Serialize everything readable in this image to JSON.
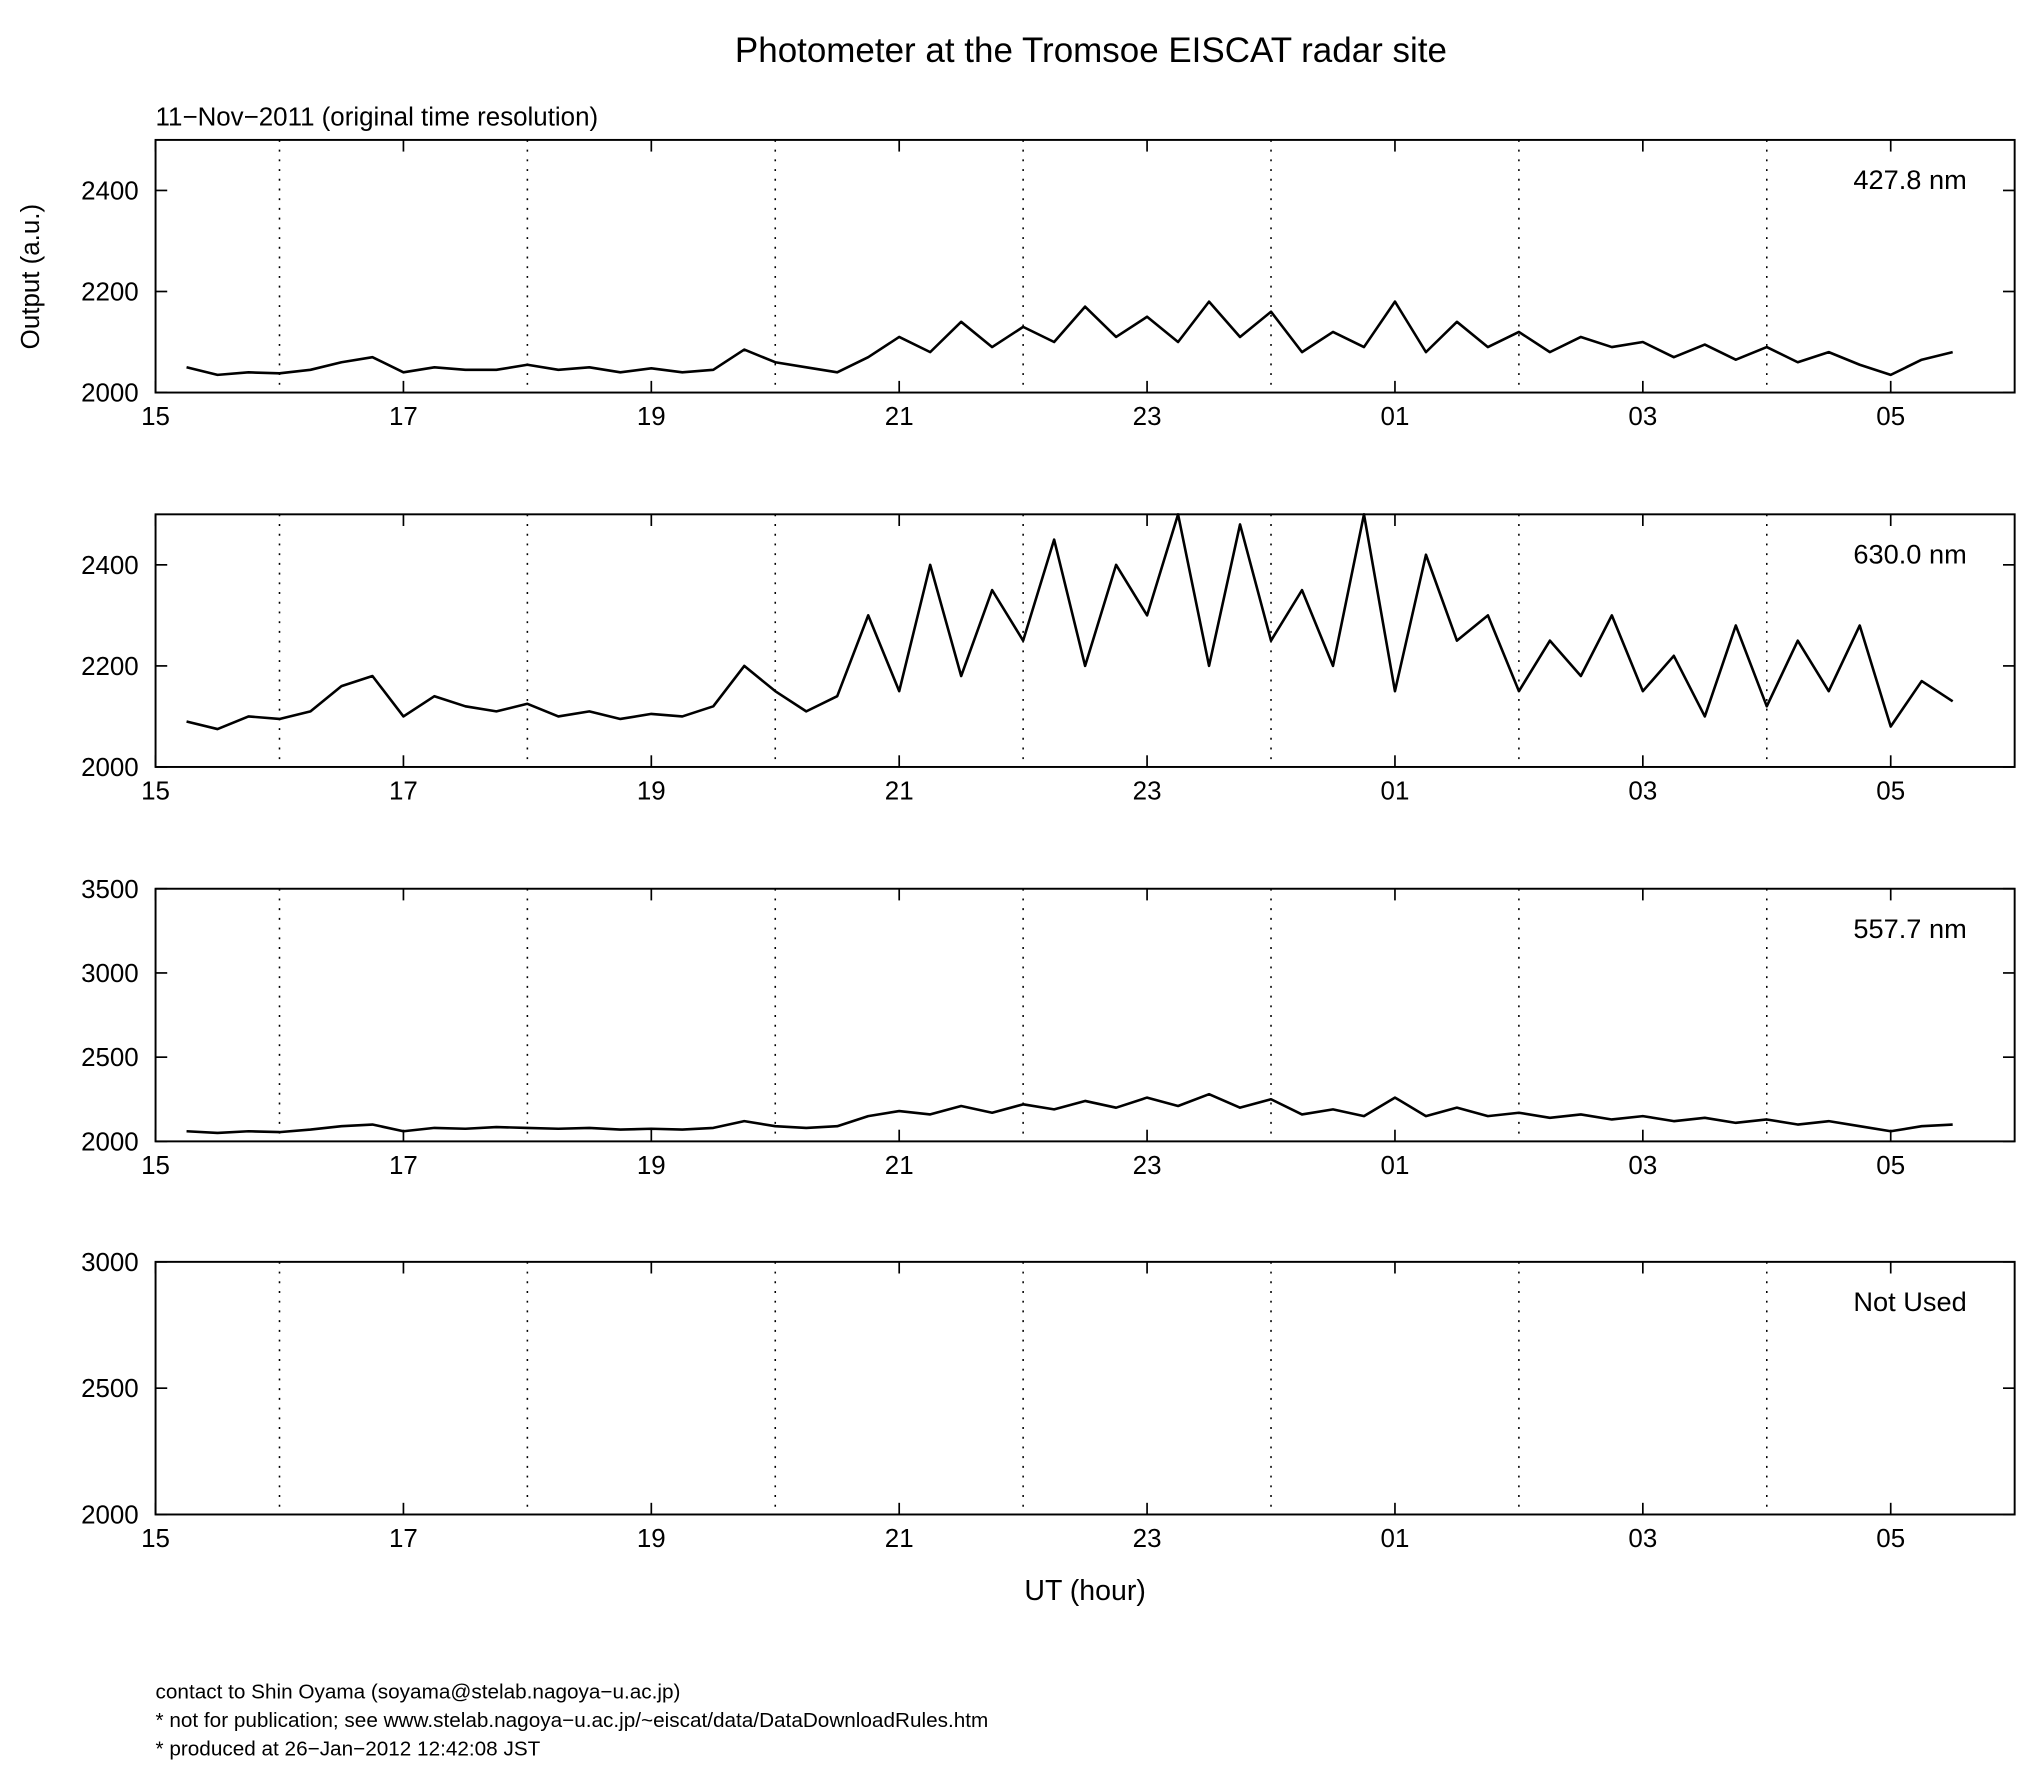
{
  "title": "Photometer at the Tromsoe EISCAT radar site",
  "subtitle": "11−Nov−2011 (original time resolution)",
  "footer": [
    "contact to Shin Oyama (soyama@stelab.nagoya−u.ac.jp)",
    "* not for publication; see www.stelab.nagoya−u.ac.jp/~eiscat/data/DataDownloadRules.htm",
    "* produced at 26−Jan−2012 12:42:08 JST"
  ],
  "chart_data": [
    {
      "type": "line",
      "label": "427.8 nm",
      "ylabel": "Output (a.u.)",
      "x": [
        15.25,
        15.5,
        15.75,
        16,
        16.25,
        16.5,
        16.75,
        17,
        17.25,
        17.5,
        17.75,
        18,
        18.25,
        18.5,
        18.75,
        19,
        19.25,
        19.5,
        19.75,
        20,
        20.25,
        20.5,
        20.75,
        21,
        21.25,
        21.5,
        21.75,
        22,
        22.25,
        22.5,
        22.75,
        23,
        23.25,
        23.5,
        23.75,
        24,
        24.25,
        24.5,
        24.75,
        25,
        25.25,
        25.5,
        25.75,
        26,
        26.25,
        26.5,
        26.75,
        27,
        27.25,
        27.5,
        27.75,
        28,
        28.25,
        28.5,
        28.75,
        29,
        29.25,
        29.5
      ],
      "series": [
        {
          "color": "#000000",
          "values": [
            2050,
            2035,
            2040,
            2038,
            2045,
            2060,
            2070,
            2040,
            2050,
            2045,
            2045,
            2055,
            2045,
            2050,
            2040,
            2048,
            2040,
            2045,
            2085,
            2060,
            2050,
            2040,
            2070,
            2110,
            2080,
            2140,
            2090,
            2130,
            2100,
            2170,
            2110,
            2150,
            2100,
            2180,
            2110,
            2160,
            2080,
            2120,
            2090,
            2180,
            2080,
            2140,
            2090,
            2120,
            2080,
            2110,
            2090,
            2100,
            2070,
            2095,
            2065,
            2090,
            2060,
            2080,
            2055,
            2035,
            2065,
            2080
          ]
        }
      ],
      "xlim": [
        15,
        30
      ],
      "xticks": [
        15,
        17,
        19,
        21,
        23,
        {
          "value": 25,
          "label": "01"
        },
        {
          "value": 27,
          "label": "03"
        },
        {
          "value": 29,
          "label": "05"
        }
      ],
      "xgrid": [
        16,
        18,
        20,
        22,
        24,
        26,
        28
      ],
      "ylim": [
        2000,
        2500
      ],
      "yticks": [
        2000,
        2200,
        2400
      ]
    },
    {
      "type": "line",
      "label": "630.0 nm",
      "x": [
        15.25,
        15.5,
        15.75,
        16,
        16.25,
        16.5,
        16.75,
        17,
        17.25,
        17.5,
        17.75,
        18,
        18.25,
        18.5,
        18.75,
        19,
        19.25,
        19.5,
        19.75,
        20,
        20.25,
        20.5,
        20.75,
        21,
        21.25,
        21.5,
        21.75,
        22,
        22.25,
        22.5,
        22.75,
        23,
        23.25,
        23.5,
        23.75,
        24,
        24.25,
        24.5,
        24.75,
        25,
        25.25,
        25.5,
        25.75,
        26,
        26.25,
        26.5,
        26.75,
        27,
        27.25,
        27.5,
        27.75,
        28,
        28.25,
        28.5,
        28.75,
        29,
        29.25,
        29.5
      ],
      "series": [
        {
          "color": "#000000",
          "values": [
            2090,
            2075,
            2100,
            2095,
            2110,
            2160,
            2180,
            2100,
            2140,
            2120,
            2110,
            2125,
            2100,
            2110,
            2095,
            2105,
            2100,
            2120,
            2200,
            2150,
            2110,
            2140,
            2300,
            2150,
            2400,
            2180,
            2350,
            2250,
            2450,
            2200,
            2400,
            2300,
            2500,
            2200,
            2480,
            2250,
            2350,
            2200,
            2500,
            2150,
            2420,
            2250,
            2300,
            2150,
            2250,
            2180,
            2300,
            2150,
            2220,
            2100,
            2280,
            2120,
            2250,
            2150,
            2280,
            2080,
            2170,
            2130
          ]
        }
      ],
      "xlim": [
        15,
        30
      ],
      "xticks": [
        15,
        17,
        19,
        21,
        23,
        {
          "value": 25,
          "label": "01"
        },
        {
          "value": 27,
          "label": "03"
        },
        {
          "value": 29,
          "label": "05"
        }
      ],
      "xgrid": [
        16,
        18,
        20,
        22,
        24,
        26,
        28
      ],
      "ylim": [
        2000,
        2500
      ],
      "yticks": [
        2000,
        2200,
        2400
      ]
    },
    {
      "type": "line",
      "label": "557.7 nm",
      "x": [
        15.25,
        15.5,
        15.75,
        16,
        16.25,
        16.5,
        16.75,
        17,
        17.25,
        17.5,
        17.75,
        18,
        18.25,
        18.5,
        18.75,
        19,
        19.25,
        19.5,
        19.75,
        20,
        20.25,
        20.5,
        20.75,
        21,
        21.25,
        21.5,
        21.75,
        22,
        22.25,
        22.5,
        22.75,
        23,
        23.25,
        23.5,
        23.75,
        24,
        24.25,
        24.5,
        24.75,
        25,
        25.25,
        25.5,
        25.75,
        26,
        26.25,
        26.5,
        26.75,
        27,
        27.25,
        27.5,
        27.75,
        28,
        28.25,
        28.5,
        28.75,
        29,
        29.25,
        29.5
      ],
      "series": [
        {
          "color": "#000000",
          "values": [
            2060,
            2050,
            2060,
            2055,
            2070,
            2090,
            2100,
            2060,
            2080,
            2075,
            2085,
            2080,
            2075,
            2080,
            2070,
            2075,
            2070,
            2080,
            2120,
            2090,
            2080,
            2090,
            2150,
            2180,
            2160,
            2210,
            2170,
            2220,
            2190,
            2240,
            2200,
            2260,
            2210,
            2280,
            2200,
            2250,
            2160,
            2190,
            2150,
            2260,
            2150,
            2200,
            2150,
            2170,
            2140,
            2160,
            2130,
            2150,
            2120,
            2140,
            2110,
            2130,
            2100,
            2120,
            2090,
            2060,
            2090,
            2100
          ]
        }
      ],
      "xlim": [
        15,
        30
      ],
      "xticks": [
        15,
        17,
        19,
        21,
        23,
        {
          "value": 25,
          "label": "01"
        },
        {
          "value": 27,
          "label": "03"
        },
        {
          "value": 29,
          "label": "05"
        }
      ],
      "xgrid": [
        16,
        18,
        20,
        22,
        24,
        26,
        28
      ],
      "ylim": [
        2000,
        3500
      ],
      "yticks": [
        2000,
        2500,
        3000,
        3500
      ]
    },
    {
      "type": "line",
      "label": "Not Used",
      "xlabel": "UT (hour)",
      "x": [],
      "series": [],
      "xlim": [
        15,
        30
      ],
      "xticks": [
        15,
        17,
        19,
        21,
        23,
        {
          "value": 25,
          "label": "01"
        },
        {
          "value": 27,
          "label": "03"
        },
        {
          "value": 29,
          "label": "05"
        }
      ],
      "xgrid": [
        16,
        18,
        20,
        22,
        24,
        26,
        28
      ],
      "ylim": [
        2000,
        3000
      ],
      "yticks": [
        2000,
        2500,
        3000
      ]
    }
  ]
}
